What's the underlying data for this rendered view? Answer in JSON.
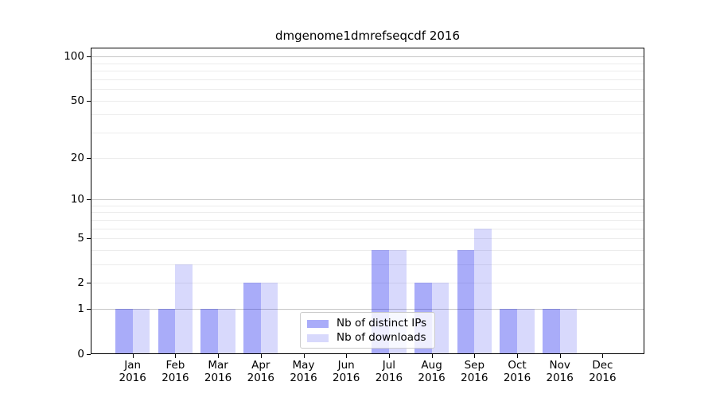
{
  "figure": {
    "background": "#ffffff"
  },
  "chart_data": {
    "type": "bar",
    "title": "dmgenome1dmrefseqcdf 2016",
    "categories": [
      "Jan",
      "Feb",
      "Mar",
      "Apr",
      "May",
      "Jun",
      "Jul",
      "Aug",
      "Sep",
      "Oct",
      "Nov",
      "Dec"
    ],
    "year_label": "2016",
    "series": [
      {
        "name": "Nb of distinct IPs",
        "color": "rgba(10,16,237,0.35)",
        "values": [
          1,
          1,
          1,
          2,
          0,
          0,
          4,
          2,
          4,
          1,
          1,
          0
        ]
      },
      {
        "name": "Nb of downloads",
        "color": "rgba(10,16,237,0.16)",
        "values": [
          1,
          3,
          1,
          2,
          0,
          0,
          4,
          2,
          6,
          1,
          1,
          0
        ]
      }
    ],
    "yscale": "log10(1+x)",
    "ylim": [
      0,
      115
    ],
    "y_ticks": [
      0,
      1,
      2,
      5,
      10,
      20,
      50,
      100
    ],
    "y_tick_labels": [
      "0",
      "1",
      "2",
      "5",
      "10",
      "20",
      "50",
      "100"
    ],
    "xlabel": "",
    "ylabel": "",
    "grid": {
      "minor_values": [
        2,
        3,
        4,
        5,
        6,
        7,
        8,
        9,
        20,
        30,
        40,
        50,
        60,
        70,
        80,
        90
      ],
      "major_values": [
        1,
        10,
        100
      ],
      "minor_color": "#ececec",
      "major_color": "#c6c6c6"
    },
    "legend": {
      "position": "bottom-center",
      "entries": [
        "Nb of distinct IPs",
        "Nb of downloads"
      ]
    }
  }
}
